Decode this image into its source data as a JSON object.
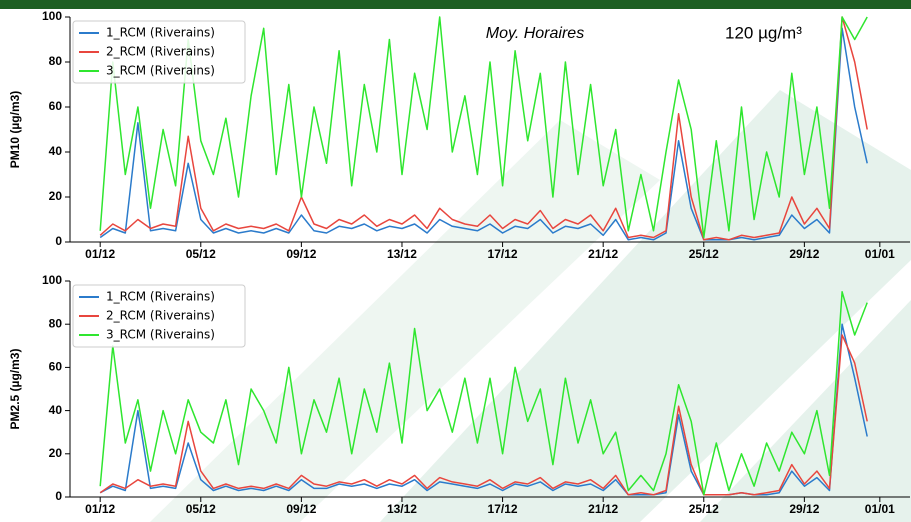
{
  "chart_data": [
    {
      "type": "line",
      "ylabel": "PM10 (µg/m3)",
      "annotations": [
        "Moy. Horaires",
        "120 µg/m³"
      ],
      "legend": "upper left",
      "x": [
        1,
        1.5,
        2,
        2.5,
        3,
        3.5,
        4,
        4.5,
        5,
        5.5,
        6,
        6.5,
        7,
        7.5,
        8,
        8.5,
        9,
        9.5,
        10,
        10.5,
        11,
        11.5,
        12,
        12.5,
        13,
        13.5,
        14,
        14.5,
        15,
        15.5,
        16,
        16.5,
        17,
        17.5,
        18,
        18.5,
        19,
        19.5,
        20,
        20.5,
        21,
        21.5,
        22,
        22.5,
        23,
        23.5,
        24,
        24.5,
        25,
        25.5,
        26,
        26.5,
        27,
        27.5,
        28,
        28.5,
        29,
        29.5,
        30,
        30.5,
        31,
        31.5
      ],
      "xlim": [
        -0.2,
        33.2
      ],
      "xticks": [
        {
          "value": 1,
          "label": "01/12"
        },
        {
          "value": 5,
          "label": "05/12"
        },
        {
          "value": 9,
          "label": "09/12"
        },
        {
          "value": 13,
          "label": "13/12"
        },
        {
          "value": 17,
          "label": "17/12"
        },
        {
          "value": 21,
          "label": "21/12"
        },
        {
          "value": 25,
          "label": "25/12"
        },
        {
          "value": 29,
          "label": "29/12"
        },
        {
          "value": 32,
          "label": "01/01"
        }
      ],
      "ylim": [
        0,
        100
      ],
      "yticks": [
        0,
        20,
        40,
        60,
        80,
        100
      ],
      "series": [
        {
          "name": "1_RCM (Riverains)",
          "color": "#2b7bcb",
          "values": [
            2,
            6,
            4,
            53,
            5,
            6,
            5,
            35,
            10,
            4,
            6,
            4,
            5,
            4,
            6,
            4,
            12,
            5,
            4,
            7,
            6,
            8,
            5,
            7,
            6,
            8,
            4,
            10,
            7,
            6,
            5,
            8,
            4,
            7,
            6,
            10,
            4,
            7,
            6,
            8,
            3,
            10,
            1,
            2,
            1,
            4,
            45,
            15,
            1,
            1,
            1,
            2,
            1,
            2,
            3,
            12,
            6,
            10,
            4,
            95,
            60,
            35
          ]
        },
        {
          "name": "2_RCM (Riverains)",
          "color": "#e8463e",
          "values": [
            3,
            8,
            5,
            10,
            6,
            8,
            7,
            47,
            15,
            5,
            8,
            6,
            7,
            6,
            8,
            5,
            20,
            8,
            6,
            10,
            8,
            12,
            7,
            10,
            8,
            12,
            6,
            15,
            10,
            8,
            7,
            12,
            6,
            10,
            8,
            14,
            6,
            10,
            8,
            12,
            5,
            15,
            2,
            3,
            2,
            5,
            57,
            20,
            1,
            2,
            1,
            3,
            2,
            3,
            4,
            20,
            8,
            15,
            6,
            100,
            80,
            50
          ]
        },
        {
          "name": "3_RCM (Riverains)",
          "color": "#2fe62f",
          "values": [
            5,
            80,
            30,
            60,
            15,
            50,
            25,
            90,
            45,
            30,
            55,
            20,
            65,
            95,
            30,
            70,
            20,
            60,
            35,
            85,
            25,
            70,
            40,
            90,
            30,
            75,
            50,
            100,
            40,
            65,
            30,
            80,
            25,
            85,
            45,
            75,
            20,
            80,
            30,
            70,
            25,
            50,
            5,
            30,
            5,
            40,
            72,
            50,
            2,
            45,
            5,
            60,
            10,
            40,
            20,
            75,
            30,
            60,
            15,
            100,
            90,
            100
          ]
        }
      ]
    },
    {
      "type": "line",
      "ylabel": "PM2.5 (µg/m3)",
      "legend": "upper left",
      "x": [
        1,
        1.5,
        2,
        2.5,
        3,
        3.5,
        4,
        4.5,
        5,
        5.5,
        6,
        6.5,
        7,
        7.5,
        8,
        8.5,
        9,
        9.5,
        10,
        10.5,
        11,
        11.5,
        12,
        12.5,
        13,
        13.5,
        14,
        14.5,
        15,
        15.5,
        16,
        16.5,
        17,
        17.5,
        18,
        18.5,
        19,
        19.5,
        20,
        20.5,
        21,
        21.5,
        22,
        22.5,
        23,
        23.5,
        24,
        24.5,
        25,
        25.5,
        26,
        26.5,
        27,
        27.5,
        28,
        28.5,
        29,
        29.5,
        30,
        30.5,
        31,
        31.5
      ],
      "xlim": [
        -0.2,
        33.2
      ],
      "xticks": [
        {
          "value": 1,
          "label": "01/12"
        },
        {
          "value": 5,
          "label": "05/12"
        },
        {
          "value": 9,
          "label": "09/12"
        },
        {
          "value": 13,
          "label": "13/12"
        },
        {
          "value": 17,
          "label": "17/12"
        },
        {
          "value": 21,
          "label": "21/12"
        },
        {
          "value": 25,
          "label": "25/12"
        },
        {
          "value": 29,
          "label": "29/12"
        },
        {
          "value": 32,
          "label": "01/01"
        }
      ],
      "ylim": [
        0,
        100
      ],
      "yticks": [
        0,
        20,
        40,
        60,
        80,
        100
      ],
      "series": [
        {
          "name": "1_RCM (Riverains)",
          "color": "#2b7bcb",
          "values": [
            2,
            5,
            3,
            40,
            4,
            5,
            4,
            25,
            8,
            3,
            5,
            3,
            4,
            3,
            5,
            3,
            8,
            4,
            4,
            6,
            5,
            6,
            4,
            6,
            5,
            8,
            3,
            7,
            6,
            5,
            4,
            6,
            3,
            6,
            5,
            7,
            3,
            6,
            5,
            6,
            3,
            8,
            1,
            1,
            1,
            2,
            38,
            12,
            1,
            1,
            1,
            2,
            1,
            1,
            2,
            12,
            5,
            9,
            3,
            80,
            55,
            28
          ]
        },
        {
          "name": "2_RCM (Riverains)",
          "color": "#e8463e",
          "values": [
            2,
            6,
            4,
            8,
            5,
            6,
            5,
            35,
            12,
            4,
            6,
            4,
            5,
            4,
            6,
            4,
            10,
            6,
            5,
            7,
            6,
            8,
            5,
            8,
            6,
            10,
            4,
            9,
            7,
            6,
            5,
            8,
            4,
            7,
            6,
            9,
            4,
            7,
            6,
            8,
            4,
            10,
            1,
            2,
            1,
            3,
            42,
            15,
            1,
            1,
            1,
            2,
            1,
            2,
            3,
            15,
            6,
            12,
            4,
            75,
            62,
            35
          ]
        },
        {
          "name": "3_RCM (Riverains)",
          "color": "#2fe62f",
          "values": [
            5,
            70,
            25,
            45,
            12,
            40,
            20,
            45,
            30,
            25,
            45,
            15,
            50,
            40,
            25,
            60,
            20,
            45,
            30,
            55,
            20,
            50,
            30,
            62,
            25,
            78,
            40,
            50,
            30,
            55,
            25,
            55,
            20,
            60,
            35,
            50,
            15,
            55,
            25,
            45,
            20,
            30,
            3,
            10,
            3,
            20,
            52,
            35,
            1,
            25,
            3,
            20,
            5,
            25,
            12,
            30,
            20,
            40,
            10,
            95,
            75,
            90
          ]
        }
      ]
    }
  ]
}
